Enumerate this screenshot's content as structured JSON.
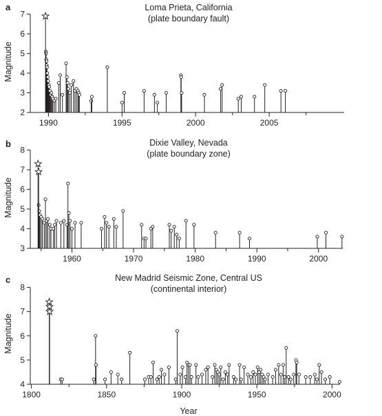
{
  "chart_data": [
    {
      "type": "stem",
      "panel": "a",
      "title": "Loma Prieta, California",
      "subtitle": "(plate boundary fault)",
      "ylabel": "Magnitude",
      "xlabel": "",
      "xlim": [
        1989.0,
        2010.6
      ],
      "ylim": [
        2,
        7.3
      ],
      "xticks": [
        1990,
        1995,
        2000,
        2005
      ],
      "yticks": [
        2,
        3,
        4,
        5,
        6,
        7
      ],
      "mainshock": {
        "x": 1989.8,
        "y": 6.9
      },
      "events": [
        [
          1989.82,
          5.1
        ],
        [
          1989.84,
          5.0
        ],
        [
          1989.85,
          4.7
        ],
        [
          1989.87,
          4.6
        ],
        [
          1989.88,
          4.4
        ],
        [
          1989.9,
          4.3
        ],
        [
          1989.92,
          4.0
        ],
        [
          1989.95,
          3.8
        ],
        [
          1989.98,
          3.6
        ],
        [
          1990.02,
          3.4
        ],
        [
          1990.05,
          3.3
        ],
        [
          1990.1,
          3.1
        ],
        [
          1990.15,
          2.9
        ],
        [
          1990.2,
          3.0
        ],
        [
          1990.25,
          2.8
        ],
        [
          1990.3,
          2.7
        ],
        [
          1990.4,
          2.6
        ],
        [
          1990.5,
          2.7
        ],
        [
          1990.7,
          3.5
        ],
        [
          1990.8,
          3.9
        ],
        [
          1990.95,
          2.9
        ],
        [
          1991.2,
          4.5
        ],
        [
          1991.25,
          3.8
        ],
        [
          1991.3,
          3.5
        ],
        [
          1991.35,
          3.2
        ],
        [
          1991.45,
          3.0
        ],
        [
          1991.55,
          3.4
        ],
        [
          1991.7,
          3.6
        ],
        [
          1991.8,
          3.1
        ],
        [
          1991.9,
          3.2
        ],
        [
          1992.0,
          3.1
        ],
        [
          1992.05,
          3.0
        ],
        [
          1992.1,
          2.9
        ],
        [
          1992.9,
          2.6
        ],
        [
          1992.95,
          2.8
        ],
        [
          1994.0,
          4.3
        ],
        [
          1995.0,
          2.5
        ],
        [
          1995.15,
          3.0
        ],
        [
          1996.5,
          3.1
        ],
        [
          1997.2,
          2.9
        ],
        [
          1997.4,
          2.5
        ],
        [
          1998.0,
          3.0
        ],
        [
          1999.0,
          3.9
        ],
        [
          1999.02,
          3.8
        ],
        [
          1999.05,
          3.0
        ],
        [
          2000.6,
          2.9
        ],
        [
          2001.7,
          3.2
        ],
        [
          2001.8,
          3.4
        ],
        [
          2002.9,
          2.7
        ],
        [
          2003.1,
          2.8
        ],
        [
          2004.0,
          2.8
        ],
        [
          2004.7,
          3.4
        ],
        [
          2005.8,
          3.1
        ],
        [
          2006.1,
          3.1
        ]
      ]
    },
    {
      "type": "stem",
      "panel": "b",
      "title": "Dixie Valley, Nevada",
      "subtitle": "(plate boundary zone)",
      "ylabel": "Magnitude",
      "xlabel": "",
      "xlim": [
        1950.8,
        2004.0
      ],
      "ylim": [
        3,
        8.3
      ],
      "xticks": [
        1960,
        1970,
        1980,
        1990,
        2000
      ],
      "yticks": [
        3,
        4,
        5,
        6,
        7,
        8
      ],
      "mainshock": [
        {
          "x": 1954.5,
          "y": 7.3
        },
        {
          "x": 1954.6,
          "y": 6.9
        }
      ],
      "events": [
        [
          1954.6,
          5.2
        ],
        [
          1954.7,
          4.9
        ],
        [
          1954.8,
          4.7
        ],
        [
          1955.0,
          4.6
        ],
        [
          1955.2,
          4.5
        ],
        [
          1955.5,
          4.3
        ],
        [
          1955.7,
          5.5
        ],
        [
          1955.9,
          4.4
        ],
        [
          1956.1,
          4.5
        ],
        [
          1956.4,
          4.2
        ],
        [
          1956.6,
          4.0
        ],
        [
          1957.0,
          4.0
        ],
        [
          1957.2,
          4.2
        ],
        [
          1957.5,
          4.4
        ],
        [
          1958.2,
          4.3
        ],
        [
          1958.7,
          4.4
        ],
        [
          1959.2,
          4.2
        ],
        [
          1959.35,
          6.3
        ],
        [
          1959.5,
          4.8
        ],
        [
          1959.7,
          4.4
        ],
        [
          1960.0,
          4.0
        ],
        [
          1960.5,
          4.3
        ],
        [
          1961.5,
          4.3
        ],
        [
          1964.8,
          4.0
        ],
        [
          1965.3,
          4.6
        ],
        [
          1965.6,
          4.3
        ],
        [
          1966.0,
          4.1
        ],
        [
          1966.8,
          4.5
        ],
        [
          1967.2,
          4.1
        ],
        [
          1968.3,
          4.9
        ],
        [
          1971.3,
          4.2
        ],
        [
          1971.7,
          3.5
        ],
        [
          1972.0,
          3.5
        ],
        [
          1972.8,
          4.0
        ],
        [
          1973.1,
          4.1
        ],
        [
          1975.8,
          4.2
        ],
        [
          1976.1,
          3.9
        ],
        [
          1976.6,
          4.1
        ],
        [
          1977.0,
          3.7
        ],
        [
          1977.4,
          3.5
        ],
        [
          1978.5,
          4.4
        ],
        [
          1979.8,
          4.2
        ],
        [
          1983.3,
          3.8
        ],
        [
          1987.2,
          3.8
        ],
        [
          1988.8,
          3.5
        ],
        [
          1999.8,
          3.6
        ],
        [
          2001.2,
          3.8
        ],
        [
          2003.8,
          3.6
        ]
      ]
    },
    {
      "type": "stem",
      "panel": "c",
      "title": "New Madrid Seismic Zone, Central US",
      "subtitle": "(continental interior)",
      "ylabel": "Magnitude",
      "xlabel": "Year",
      "xlim": [
        1800,
        2010
      ],
      "ylim": [
        4,
        8.3
      ],
      "xticks": [
        1800,
        1850,
        1900,
        1950,
        2000
      ],
      "yticks": [
        4,
        5,
        6,
        7,
        8
      ],
      "mainshock": [
        {
          "x": 1811.9,
          "y": 7.4
        },
        {
          "x": 1812.1,
          "y": 7.2
        },
        {
          "x": 1812.1,
          "y": 7.0
        }
      ],
      "events": [
        [
          1819.5,
          4.2
        ],
        [
          1820.5,
          4.2
        ],
        [
          1841.5,
          4.2
        ],
        [
          1842.7,
          6.0
        ],
        [
          1843.0,
          4.8
        ],
        [
          1849.0,
          4.2
        ],
        [
          1853.0,
          4.5
        ],
        [
          1857.5,
          4.4
        ],
        [
          1860.0,
          4.2
        ],
        [
          1865.5,
          5.3
        ],
        [
          1875.5,
          4.2
        ],
        [
          1878.0,
          4.3
        ],
        [
          1879.5,
          4.3
        ],
        [
          1881.0,
          4.9
        ],
        [
          1883.5,
          4.2
        ],
        [
          1885.0,
          4.3
        ],
        [
          1886.5,
          4.6
        ],
        [
          1888.5,
          4.4
        ],
        [
          1891.5,
          4.7
        ],
        [
          1896.0,
          4.2
        ],
        [
          1897.0,
          6.2
        ],
        [
          1899.0,
          4.4
        ],
        [
          1900.5,
          4.7
        ],
        [
          1902.5,
          4.3
        ],
        [
          1903.5,
          4.9
        ],
        [
          1904.5,
          4.8
        ],
        [
          1905.5,
          4.8
        ],
        [
          1906.5,
          4.3
        ],
        [
          1909.5,
          4.8
        ],
        [
          1911.0,
          4.3
        ],
        [
          1913.5,
          4.4
        ],
        [
          1916.0,
          4.6
        ],
        [
          1917.5,
          4.7
        ],
        [
          1920.5,
          4.3
        ],
        [
          1922.0,
          4.8
        ],
        [
          1923.0,
          4.6
        ],
        [
          1924.0,
          4.5
        ],
        [
          1925.0,
          4.4
        ],
        [
          1926.0,
          4.7
        ],
        [
          1927.5,
          4.2
        ],
        [
          1929.0,
          4.5
        ],
        [
          1930.5,
          4.4
        ],
        [
          1931.5,
          4.8
        ],
        [
          1934.5,
          4.3
        ],
        [
          1936.0,
          4.2
        ],
        [
          1938.5,
          4.8
        ],
        [
          1939.5,
          4.2
        ],
        [
          1941.5,
          4.7
        ],
        [
          1944.0,
          4.4
        ],
        [
          1946.0,
          4.3
        ],
        [
          1947.5,
          4.5
        ],
        [
          1949.0,
          4.4
        ],
        [
          1950.5,
          4.7
        ],
        [
          1951.5,
          4.5
        ],
        [
          1952.5,
          4.6
        ],
        [
          1953.5,
          4.4
        ],
        [
          1954.5,
          4.3
        ],
        [
          1955.5,
          4.2
        ],
        [
          1957.5,
          4.4
        ],
        [
          1960.5,
          4.3
        ],
        [
          1962.5,
          4.6
        ],
        [
          1964.5,
          4.8
        ],
        [
          1966.0,
          4.4
        ],
        [
          1967.5,
          4.8
        ],
        [
          1968.5,
          4.3
        ],
        [
          1969.5,
          5.5
        ],
        [
          1971.0,
          4.3
        ],
        [
          1972.5,
          4.2
        ],
        [
          1974.5,
          4.4
        ],
        [
          1976.0,
          5.0
        ],
        [
          1976.5,
          4.9
        ],
        [
          1978.0,
          4.4
        ],
        [
          1982.5,
          4.3
        ],
        [
          1985.5,
          4.3
        ],
        [
          1988.5,
          4.4
        ],
        [
          1990.0,
          4.2
        ],
        [
          1991.5,
          4.8
        ],
        [
          1993.0,
          4.5
        ],
        [
          1995.5,
          4.2
        ],
        [
          1998.5,
          4.3
        ],
        [
          2005.0,
          4.1
        ]
      ]
    }
  ]
}
